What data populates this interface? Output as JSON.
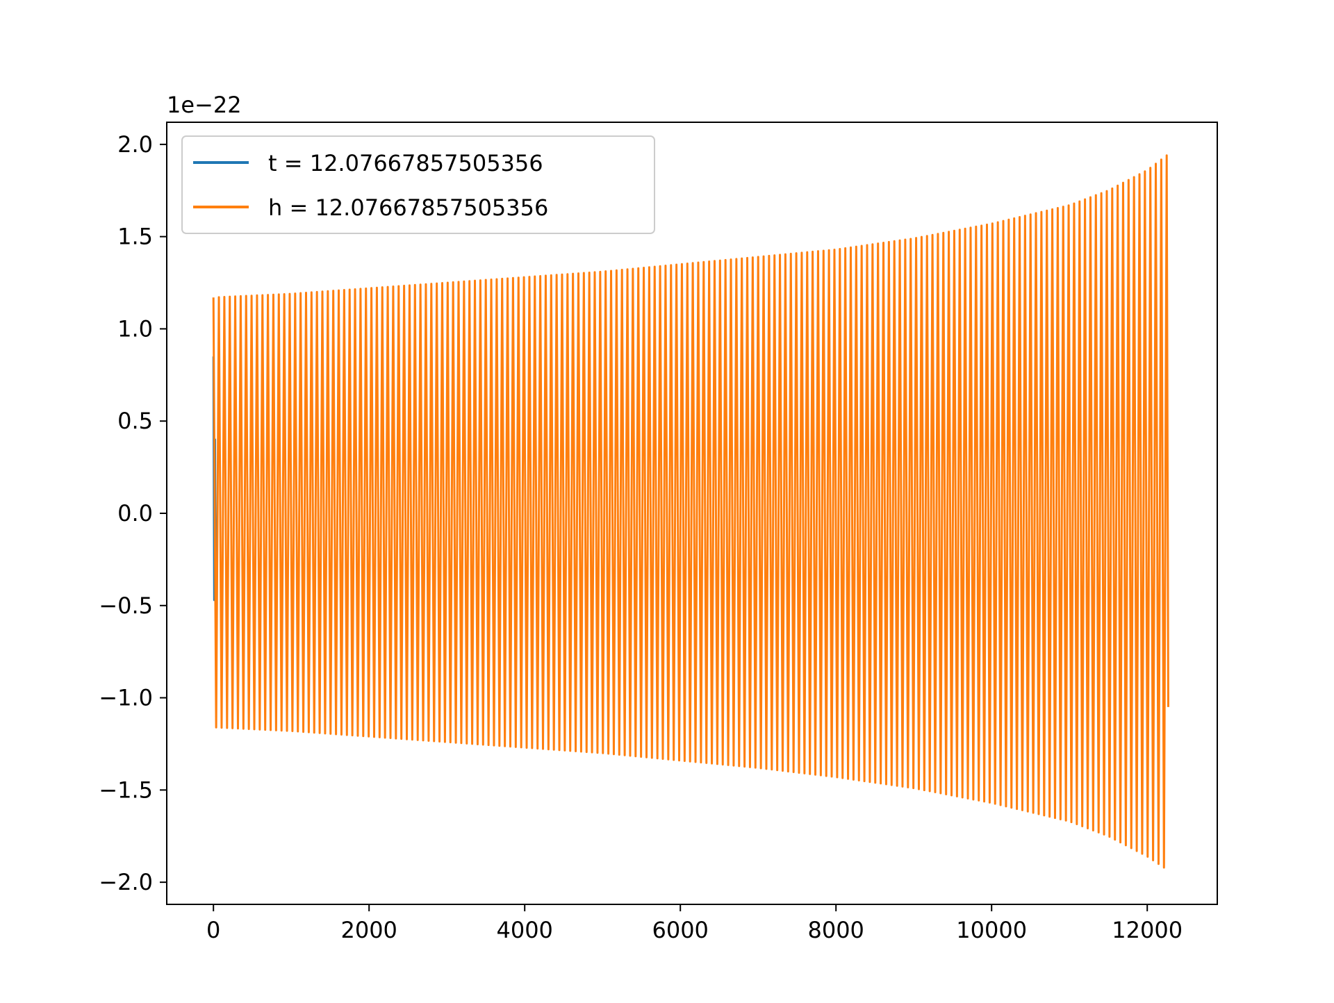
{
  "chart_data": {
    "type": "line",
    "title": "",
    "xlabel": "",
    "ylabel": "",
    "y_offset_label": "1e−22",
    "xlim": [
      -600,
      12900
    ],
    "ylim": [
      -2.12,
      2.12
    ],
    "x_ticks": [
      0,
      2000,
      4000,
      6000,
      8000,
      10000,
      12000
    ],
    "x_tick_labels": [
      "0",
      "2000",
      "4000",
      "6000",
      "8000",
      "10000",
      "12000"
    ],
    "y_ticks": [
      -2.0,
      -1.5,
      -1.0,
      -0.5,
      0.0,
      0.5,
      1.0,
      1.5,
      2.0
    ],
    "y_tick_labels": [
      "−2.0",
      "−1.5",
      "−1.0",
      "−0.5",
      "0.0",
      "0.5",
      "1.0",
      "1.5",
      "2.0"
    ],
    "grid": false,
    "legend_position": "top-left",
    "series": [
      {
        "name": "t = 12.07667857505356",
        "color": "#1f77b4",
        "x": [
          0,
          10,
          20,
          30
        ],
        "y": [
          0.85,
          -0.47,
          0.4,
          -0.47
        ]
      },
      {
        "name": "h = 12.07667857505356",
        "color": "#ff7f0e",
        "envelope": {
          "x": [
            0,
            1000,
            2000,
            3000,
            4000,
            5000,
            6000,
            7000,
            8000,
            9000,
            10000,
            11000,
            11500,
            12000,
            12250
          ],
          "upper": [
            1.17,
            1.19,
            1.22,
            1.25,
            1.28,
            1.31,
            1.35,
            1.39,
            1.43,
            1.49,
            1.57,
            1.67,
            1.75,
            1.86,
            1.94
          ],
          "lower": [
            -1.16,
            -1.18,
            -1.21,
            -1.24,
            -1.27,
            -1.3,
            -1.34,
            -1.38,
            -1.43,
            -1.49,
            -1.57,
            -1.67,
            -1.75,
            -1.86,
            -1.93
          ]
        },
        "x_end": 12270,
        "end_value": -1.05,
        "cycles": 175
      }
    ]
  }
}
